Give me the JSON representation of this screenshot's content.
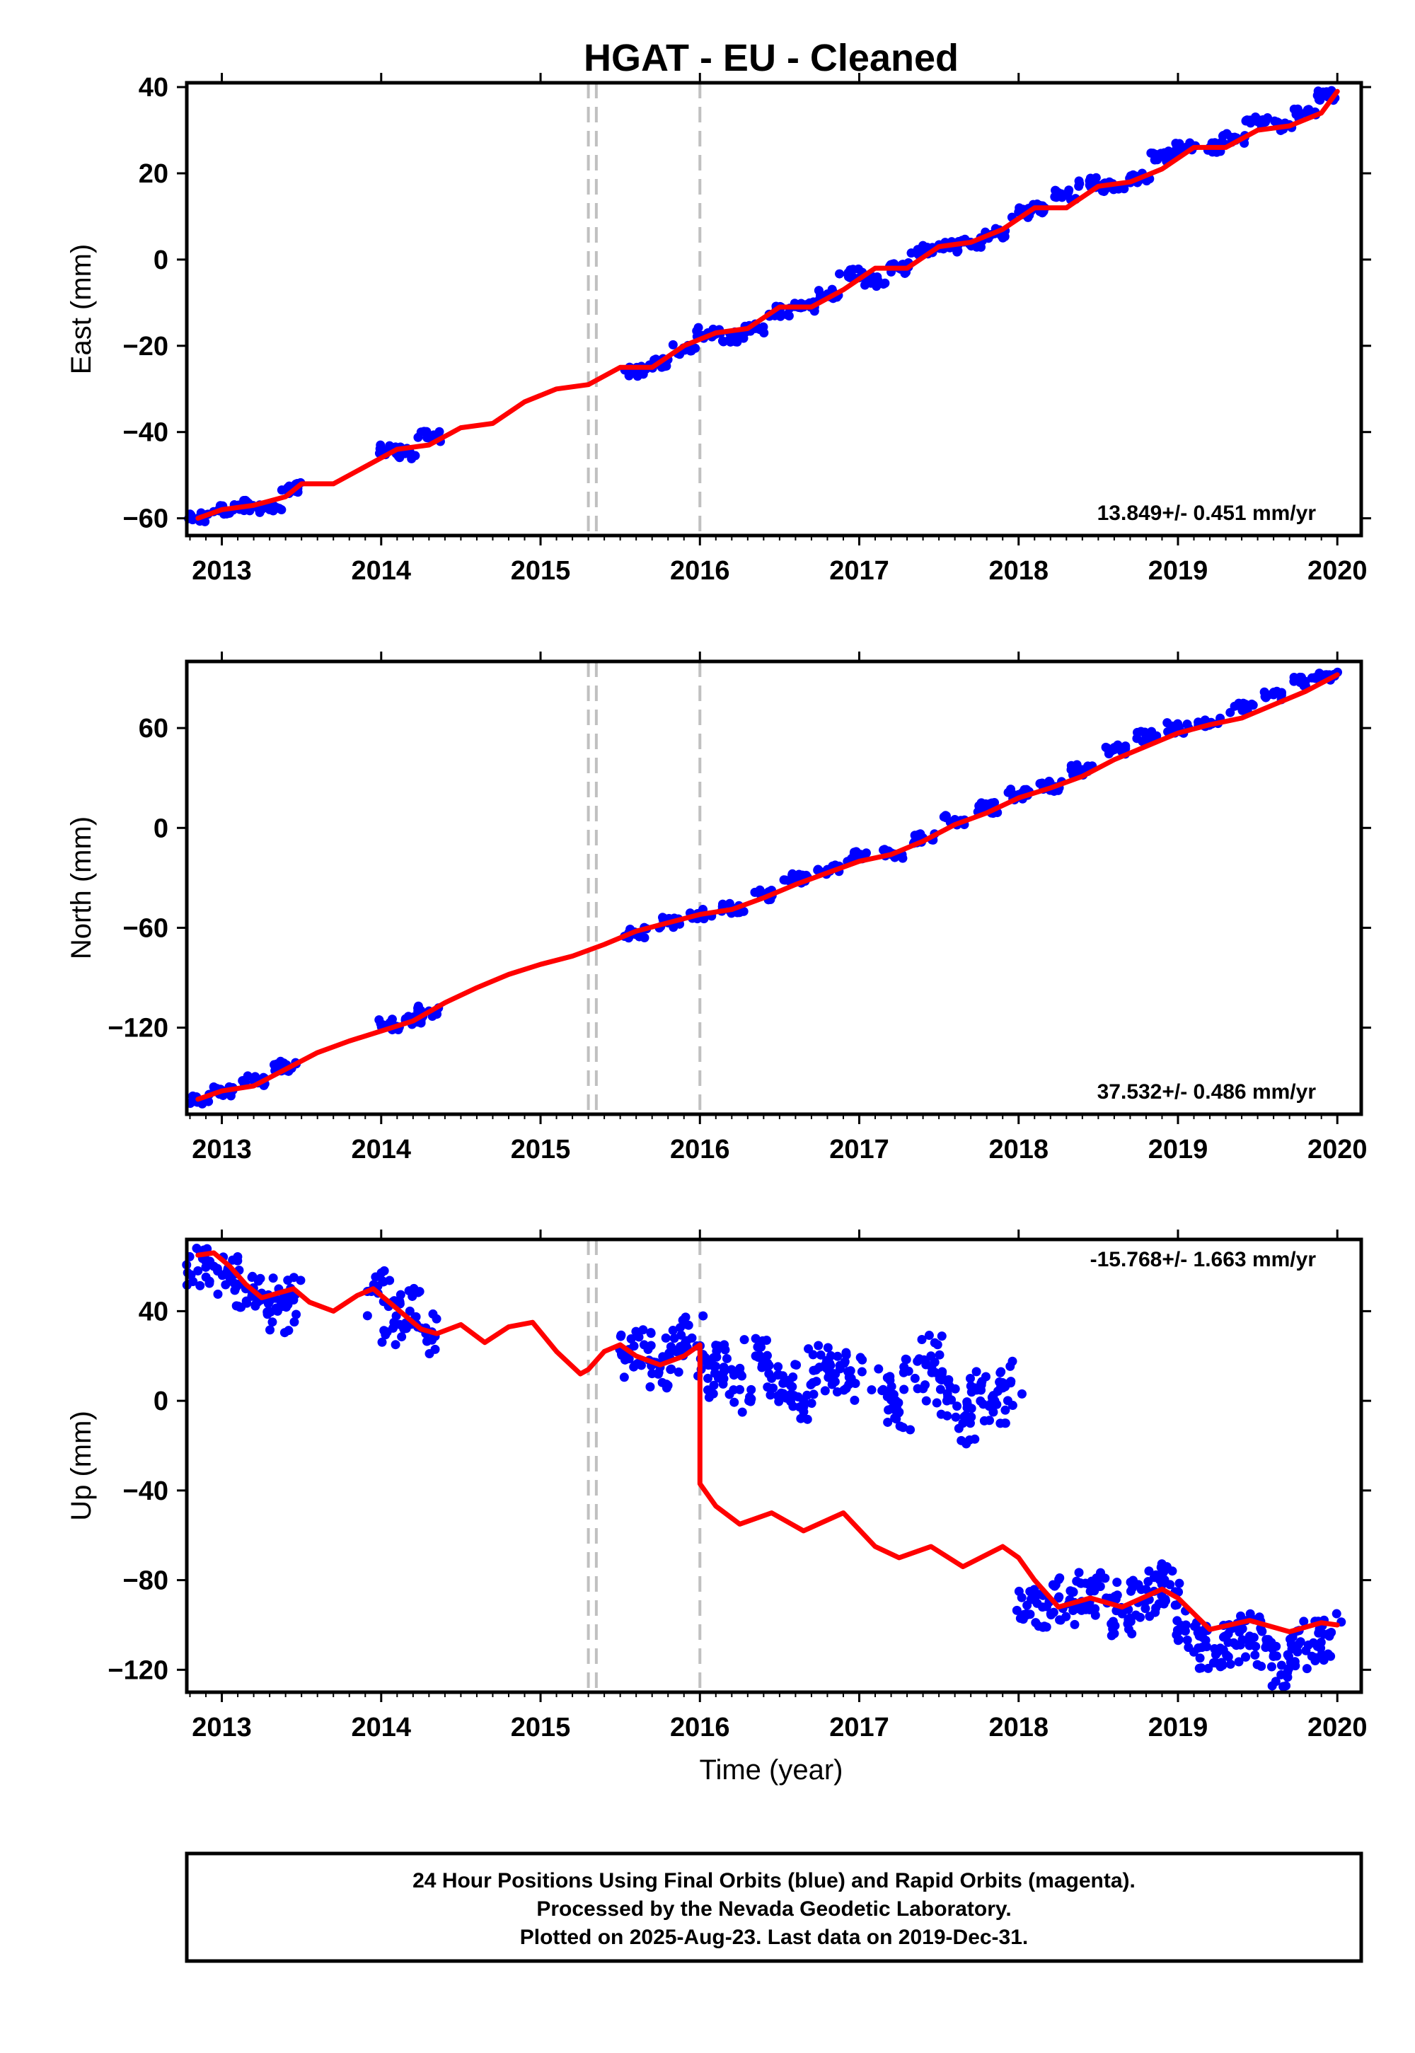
{
  "title": "HGAT  - EU - Cleaned",
  "xlabel": "Time (year)",
  "colors": {
    "data": "#0000ff",
    "model": "#ff0000",
    "event_line": "#c0c0c0",
    "frame": "#000000"
  },
  "footer": {
    "line1": "24 Hour Positions Using Final Orbits (blue) and Rapid Orbits (magenta).",
    "line2": "Processed by the Nevada Geodetic Laboratory.",
    "line3": "Plotted on 2025-Aug-23. Last data on 2019-Dec-31."
  },
  "chart_data": [
    {
      "type": "scatter",
      "ylabel": "East (mm)",
      "rate": "13.849+/- 0.451 mm/yr",
      "xlim": [
        2012.78,
        2020.15
      ],
      "ylim": [
        -64,
        41
      ],
      "x_ticks": [
        2013,
        2014,
        2015,
        2016,
        2017,
        2018,
        2019,
        2020
      ],
      "y_ticks": [
        -60,
        -40,
        -20,
        0,
        20,
        40
      ],
      "event_lines": [
        2015.3,
        2015.35,
        2016.0
      ],
      "series": [
        {
          "kind": "points",
          "color": "#0000ff",
          "x": [
            2012.85,
            2013.0,
            2013.15,
            2013.3,
            2013.45,
            2014.05,
            2014.15,
            2014.3,
            2015.6,
            2015.75,
            2015.9,
            2016.05,
            2016.2,
            2016.35,
            2016.5,
            2016.65,
            2016.8,
            2016.95,
            2017.1,
            2017.25,
            2017.4,
            2017.55,
            2017.7,
            2017.85,
            2018.0,
            2018.15,
            2018.3,
            2018.45,
            2018.6,
            2018.75,
            2018.9,
            2019.05,
            2019.2,
            2019.35,
            2019.5,
            2019.65,
            2019.8,
            2019.95
          ],
          "y": [
            -60,
            -58,
            -57,
            -58,
            -53,
            -44,
            -45,
            -41,
            -26,
            -24,
            -21,
            -17,
            -18,
            -16,
            -12,
            -11,
            -8,
            -3,
            -5,
            -2,
            2,
            3,
            4,
            6,
            11,
            12,
            15,
            18,
            17,
            19,
            24,
            26,
            26,
            28,
            32,
            31,
            34,
            38
          ]
        },
        {
          "kind": "line",
          "color": "#ff0000",
          "x": [
            2012.85,
            2013.0,
            2013.2,
            2013.4,
            2013.5,
            2013.7,
            2013.9,
            2014.1,
            2014.3,
            2014.5,
            2014.7,
            2014.9,
            2015.1,
            2015.3,
            2015.5,
            2015.7,
            2015.9,
            2016.1,
            2016.3,
            2016.5,
            2016.7,
            2016.9,
            2017.1,
            2017.3,
            2017.5,
            2017.7,
            2017.9,
            2018.1,
            2018.3,
            2018.5,
            2018.7,
            2018.9,
            2019.1,
            2019.3,
            2019.5,
            2019.7,
            2019.9,
            2020.0
          ],
          "y": [
            -60,
            -58,
            -57,
            -55,
            -52,
            -52,
            -48,
            -44,
            -43,
            -39,
            -38,
            -33,
            -30,
            -29,
            -25,
            -25,
            -20,
            -17,
            -16,
            -11,
            -11,
            -7,
            -2,
            -2,
            3,
            4,
            7,
            12,
            12,
            17,
            18,
            21,
            26,
            26,
            30,
            31,
            34,
            39
          ]
        }
      ]
    },
    {
      "type": "scatter",
      "ylabel": "North (mm)",
      "rate": "37.532+/- 0.486 mm/yr",
      "xlim": [
        2012.78,
        2020.15
      ],
      "ylim": [
        -172,
        100
      ],
      "x_ticks": [
        2013,
        2014,
        2015,
        2016,
        2017,
        2018,
        2019,
        2020
      ],
      "y_ticks": [
        -120,
        -60,
        0,
        60
      ],
      "event_lines": [
        2015.3,
        2015.35,
        2016.0
      ],
      "series": [
        {
          "kind": "points",
          "color": "#0000ff",
          "x": [
            2012.85,
            2013.0,
            2013.2,
            2013.4,
            2014.05,
            2014.2,
            2014.3,
            2015.6,
            2015.8,
            2016.0,
            2016.2,
            2016.4,
            2016.6,
            2016.8,
            2017.0,
            2017.2,
            2017.4,
            2017.6,
            2017.8,
            2018.0,
            2018.2,
            2018.4,
            2018.6,
            2018.8,
            2019.0,
            2019.2,
            2019.4,
            2019.6,
            2019.8,
            2019.95
          ],
          "y": [
            -163,
            -158,
            -152,
            -143,
            -118,
            -115,
            -110,
            -63,
            -57,
            -52,
            -48,
            -40,
            -30,
            -25,
            -17,
            -15,
            -6,
            5,
            12,
            20,
            25,
            35,
            47,
            55,
            60,
            63,
            72,
            80,
            88,
            92
          ]
        },
        {
          "kind": "line",
          "color": "#ff0000",
          "x": [
            2012.85,
            2013.0,
            2013.2,
            2013.4,
            2013.6,
            2013.8,
            2014.0,
            2014.2,
            2014.4,
            2014.6,
            2014.8,
            2015.0,
            2015.2,
            2015.4,
            2015.6,
            2015.8,
            2016.0,
            2016.2,
            2016.4,
            2016.6,
            2016.8,
            2017.0,
            2017.2,
            2017.4,
            2017.6,
            2017.8,
            2018.0,
            2018.2,
            2018.4,
            2018.6,
            2018.8,
            2019.0,
            2019.2,
            2019.4,
            2019.6,
            2019.8,
            2020.0
          ],
          "y": [
            -163,
            -158,
            -155,
            -145,
            -135,
            -128,
            -122,
            -116,
            -105,
            -96,
            -88,
            -82,
            -77,
            -70,
            -62,
            -57,
            -52,
            -49,
            -42,
            -34,
            -27,
            -20,
            -16,
            -8,
            2,
            9,
            18,
            24,
            31,
            41,
            49,
            57,
            62,
            66,
            74,
            82,
            92
          ]
        }
      ]
    },
    {
      "type": "scatter",
      "ylabel": "Up (mm)",
      "rate": "-15.768+/- 1.663 mm/yr",
      "xlim": [
        2012.78,
        2020.15
      ],
      "ylim": [
        -130,
        72
      ],
      "x_ticks": [
        2013,
        2014,
        2015,
        2016,
        2017,
        2018,
        2019,
        2020
      ],
      "y_ticks": [
        -120,
        -80,
        -40,
        0,
        40
      ],
      "event_lines": [
        2015.3,
        2015.35,
        2016.0
      ],
      "series": [
        {
          "kind": "points",
          "color": "#0000ff",
          "x": [
            2012.85,
            2012.95,
            2013.05,
            2013.15,
            2013.25,
            2013.35,
            2013.45,
            2013.98,
            2014.08,
            2014.18,
            2014.28,
            2015.55,
            2015.65,
            2015.75,
            2015.85,
            2015.95,
            2016.05,
            2016.15,
            2016.25,
            2016.35,
            2016.45,
            2016.55,
            2016.65,
            2016.75,
            2016.85,
            2016.95,
            2017.15,
            2017.25,
            2017.35,
            2017.45,
            2017.55,
            2017.65,
            2017.75,
            2017.85,
            2017.95,
            2018.05,
            2018.15,
            2018.25,
            2018.35,
            2018.45,
            2018.55,
            2018.65,
            2018.75,
            2018.85,
            2018.95,
            2019.05,
            2019.15,
            2019.25,
            2019.35,
            2019.45,
            2019.55,
            2019.65,
            2019.75,
            2019.85,
            2019.95
          ],
          "y": [
            58,
            60,
            55,
            50,
            48,
            40,
            45,
            48,
            35,
            40,
            30,
            20,
            25,
            15,
            22,
            28,
            10,
            15,
            5,
            20,
            10,
            8,
            0,
            15,
            12,
            10,
            5,
            -5,
            10,
            20,
            0,
            -10,
            5,
            0,
            8,
            -95,
            -92,
            -88,
            -90,
            -85,
            -88,
            -95,
            -90,
            -85,
            -82,
            -100,
            -110,
            -112,
            -108,
            -105,
            -110,
            -118,
            -112,
            -108,
            -105
          ]
        },
        {
          "kind": "line",
          "color": "#ff0000",
          "x": [
            2012.85,
            2012.95,
            2013.05,
            2013.15,
            2013.25,
            2013.35,
            2013.45,
            2013.55,
            2013.7,
            2013.85,
            2013.95,
            2014.05,
            2014.15,
            2014.25,
            2014.35,
            2014.5,
            2014.65,
            2014.8,
            2014.95,
            2015.1,
            2015.25,
            2015.3,
            2015.4,
            2015.5,
            2015.6,
            2015.75,
            2015.9,
            2016.0,
            2016.0,
            2016.1,
            2016.25,
            2016.45,
            2016.65,
            2016.9,
            2017.1,
            2017.25,
            2017.45,
            2017.65,
            2017.9,
            2018.0,
            2018.1,
            2018.25,
            2018.45,
            2018.65,
            2018.9,
            2019.0,
            2019.2,
            2019.45,
            2019.7,
            2019.9,
            2020.0
          ],
          "y": [
            65,
            66,
            60,
            52,
            46,
            48,
            50,
            44,
            40,
            47,
            50,
            44,
            38,
            32,
            30,
            34,
            26,
            33,
            35,
            22,
            12,
            14,
            22,
            25,
            20,
            16,
            20,
            25,
            -37,
            -47,
            -55,
            -50,
            -58,
            -50,
            -65,
            -70,
            -65,
            -74,
            -65,
            -70,
            -80,
            -92,
            -88,
            -92,
            -84,
            -88,
            -102,
            -98,
            -103,
            -99,
            -100
          ]
        }
      ]
    }
  ]
}
